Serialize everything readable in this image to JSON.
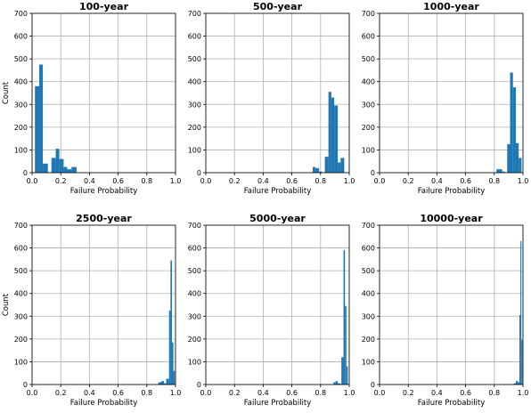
{
  "chart_data": [
    {
      "type": "bar",
      "title": "100-year",
      "xlabel": "Failure Probability",
      "ylabel": "Count",
      "xlim": [
        0,
        1
      ],
      "ylim": [
        0,
        700
      ],
      "xticks": [
        "0.0",
        "0.2",
        "0.4",
        "0.6",
        "0.8",
        "1.0"
      ],
      "yticks": [
        "0",
        "100",
        "200",
        "300",
        "400",
        "500",
        "600",
        "700"
      ],
      "grid": true,
      "bins": [
        {
          "x0": 0.02,
          "x1": 0.05,
          "y": 380
        },
        {
          "x0": 0.05,
          "x1": 0.075,
          "y": 475
        },
        {
          "x0": 0.075,
          "x1": 0.11,
          "y": 40
        },
        {
          "x0": 0.135,
          "x1": 0.165,
          "y": 65
        },
        {
          "x0": 0.165,
          "x1": 0.19,
          "y": 105
        },
        {
          "x0": 0.19,
          "x1": 0.22,
          "y": 60
        },
        {
          "x0": 0.22,
          "x1": 0.245,
          "y": 25
        },
        {
          "x0": 0.245,
          "x1": 0.275,
          "y": 15
        },
        {
          "x0": 0.275,
          "x1": 0.31,
          "y": 25
        }
      ]
    },
    {
      "type": "bar",
      "title": "500-year",
      "xlabel": "Failure Probability",
      "ylabel": "",
      "xlim": [
        0,
        1
      ],
      "ylim": [
        0,
        700
      ],
      "xticks": [
        "0.0",
        "0.2",
        "0.4",
        "0.6",
        "0.8",
        "1.0"
      ],
      "yticks": [
        "0",
        "100",
        "200",
        "300",
        "400",
        "500",
        "600",
        "700"
      ],
      "grid": true,
      "bins": [
        {
          "x0": 0.745,
          "x1": 0.765,
          "y": 25
        },
        {
          "x0": 0.765,
          "x1": 0.79,
          "y": 20
        },
        {
          "x0": 0.79,
          "x1": 0.81,
          "y": 5
        },
        {
          "x0": 0.83,
          "x1": 0.855,
          "y": 70
        },
        {
          "x0": 0.855,
          "x1": 0.875,
          "y": 355
        },
        {
          "x0": 0.875,
          "x1": 0.895,
          "y": 330
        },
        {
          "x0": 0.895,
          "x1": 0.92,
          "y": 295
        },
        {
          "x0": 0.92,
          "x1": 0.94,
          "y": 45
        },
        {
          "x0": 0.94,
          "x1": 0.965,
          "y": 65
        }
      ]
    },
    {
      "type": "bar",
      "title": "1000-year",
      "xlabel": "Failure Probability",
      "ylabel": "",
      "xlim": [
        0,
        1
      ],
      "ylim": [
        0,
        700
      ],
      "xticks": [
        "0.0",
        "0.2",
        "0.4",
        "0.6",
        "0.8",
        "1.0"
      ],
      "yticks": [
        "0",
        "100",
        "200",
        "300",
        "400",
        "500",
        "600",
        "700"
      ],
      "grid": true,
      "bins": [
        {
          "x0": 0.815,
          "x1": 0.835,
          "y": 15
        },
        {
          "x0": 0.835,
          "x1": 0.855,
          "y": 15
        },
        {
          "x0": 0.855,
          "x1": 0.875,
          "y": 5
        },
        {
          "x0": 0.89,
          "x1": 0.91,
          "y": 125
        },
        {
          "x0": 0.91,
          "x1": 0.93,
          "y": 440
        },
        {
          "x0": 0.93,
          "x1": 0.95,
          "y": 375
        },
        {
          "x0": 0.95,
          "x1": 0.97,
          "y": 130
        },
        {
          "x0": 0.97,
          "x1": 0.99,
          "y": 65
        }
      ]
    },
    {
      "type": "bar",
      "title": "2500-year",
      "xlabel": "Failure Probability",
      "ylabel": "Count",
      "xlim": [
        0,
        1
      ],
      "ylim": [
        0,
        700
      ],
      "xticks": [
        "0.0",
        "0.2",
        "0.4",
        "0.6",
        "0.8",
        "1.0"
      ],
      "yticks": [
        "0",
        "100",
        "200",
        "300",
        "400",
        "500",
        "600",
        "700"
      ],
      "grid": true,
      "bins": [
        {
          "x0": 0.88,
          "x1": 0.9,
          "y": 10
        },
        {
          "x0": 0.9,
          "x1": 0.92,
          "y": 15
        },
        {
          "x0": 0.92,
          "x1": 0.935,
          "y": 5
        },
        {
          "x0": 0.935,
          "x1": 0.955,
          "y": 25
        },
        {
          "x0": 0.955,
          "x1": 0.965,
          "y": 325
        },
        {
          "x0": 0.965,
          "x1": 0.975,
          "y": 545
        },
        {
          "x0": 0.975,
          "x1": 0.985,
          "y": 185
        },
        {
          "x0": 0.985,
          "x1": 0.995,
          "y": 60
        }
      ]
    },
    {
      "type": "bar",
      "title": "5000-year",
      "xlabel": "Failure Probability",
      "ylabel": "",
      "xlim": [
        0,
        1
      ],
      "ylim": [
        0,
        700
      ],
      "xticks": [
        "0.0",
        "0.2",
        "0.4",
        "0.6",
        "0.8",
        "1.0"
      ],
      "yticks": [
        "0",
        "100",
        "200",
        "300",
        "400",
        "500",
        "600",
        "700"
      ],
      "grid": true,
      "bins": [
        {
          "x0": 0.89,
          "x1": 0.905,
          "y": 10
        },
        {
          "x0": 0.905,
          "x1": 0.92,
          "y": 15
        },
        {
          "x0": 0.92,
          "x1": 0.94,
          "y": 5
        },
        {
          "x0": 0.945,
          "x1": 0.96,
          "y": 120
        },
        {
          "x0": 0.96,
          "x1": 0.97,
          "y": 590
        },
        {
          "x0": 0.97,
          "x1": 0.98,
          "y": 345
        },
        {
          "x0": 0.98,
          "x1": 0.99,
          "y": 80
        }
      ]
    },
    {
      "type": "bar",
      "title": "10000-year",
      "xlabel": "Failure Probability",
      "ylabel": "",
      "xlim": [
        0,
        1
      ],
      "ylim": [
        0,
        700
      ],
      "xticks": [
        "0.0",
        "0.2",
        "0.4",
        "0.6",
        "0.8",
        "1.0"
      ],
      "yticks": [
        "0",
        "100",
        "200",
        "300",
        "400",
        "500",
        "600",
        "700"
      ],
      "grid": true,
      "bins": [
        {
          "x0": 0.935,
          "x1": 0.95,
          "y": 5
        },
        {
          "x0": 0.95,
          "x1": 0.965,
          "y": 15
        },
        {
          "x0": 0.965,
          "x1": 0.975,
          "y": 10
        },
        {
          "x0": 0.975,
          "x1": 0.982,
          "y": 305
        },
        {
          "x0": 0.982,
          "x1": 0.989,
          "y": 630
        },
        {
          "x0": 0.989,
          "x1": 0.996,
          "y": 195
        }
      ]
    }
  ]
}
